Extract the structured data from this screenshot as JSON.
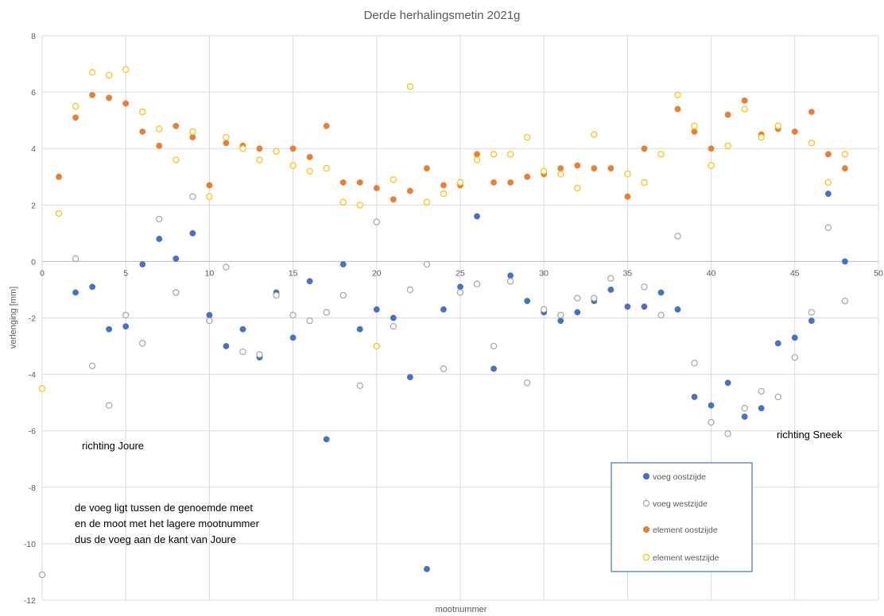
{
  "chart_data": {
    "type": "scatter",
    "title": "Derde herhalingsmetin 2021g",
    "xlabel": "mootnummer",
    "ylabel": "verlenging [mm]",
    "xlim": [
      0,
      50
    ],
    "ylim": [
      -12,
      8
    ],
    "xticks": [
      0,
      5,
      10,
      15,
      20,
      25,
      30,
      35,
      40,
      45,
      50
    ],
    "yticks": [
      -12,
      -10,
      -8,
      -6,
      -4,
      -2,
      0,
      2,
      4,
      6,
      8
    ],
    "grid": true,
    "legend_position": "bottom-right",
    "series": [
      {
        "name": "voeg oostzijde",
        "color": "#4472C4",
        "marker": "filled",
        "x": [
          2,
          3,
          4,
          5,
          6,
          7,
          8,
          9,
          10,
          11,
          12,
          13,
          14,
          15,
          16,
          17,
          18,
          19,
          20,
          21,
          22,
          23,
          24,
          25,
          26,
          27,
          28,
          29,
          30,
          31,
          32,
          33,
          34,
          35,
          36,
          37,
          38,
          39,
          40,
          41,
          42,
          43,
          44,
          45,
          46,
          47,
          48
        ],
        "y": [
          -1.1,
          -0.9,
          -2.4,
          -2.3,
          -0.1,
          0.8,
          0.1,
          1.0,
          -1.9,
          -3.0,
          -2.4,
          -3.4,
          -1.1,
          -2.7,
          -0.7,
          -6.3,
          -0.1,
          -2.4,
          -1.7,
          -2.0,
          -4.1,
          -10.9,
          -1.7,
          -0.9,
          1.6,
          -3.8,
          -0.5,
          -1.4,
          -1.8,
          -2.1,
          -1.8,
          -1.4,
          -1.0,
          -1.6,
          -1.6,
          -1.1,
          -1.7,
          -4.8,
          -5.1,
          -4.3,
          -5.5,
          -5.2,
          -2.9,
          -2.7,
          -2.1,
          2.4,
          0.0
        ]
      },
      {
        "name": "voeg westzijde",
        "color": "#A5A5A5",
        "marker": "hollow",
        "x": [
          0,
          2,
          3,
          4,
          5,
          6,
          7,
          8,
          9,
          10,
          11,
          12,
          13,
          14,
          15,
          16,
          17,
          18,
          19,
          20,
          21,
          22,
          23,
          24,
          25,
          26,
          27,
          28,
          29,
          30,
          31,
          32,
          33,
          34,
          36,
          37,
          38,
          39,
          40,
          41,
          42,
          43,
          44,
          45,
          46,
          47,
          48
        ],
        "y": [
          -11.1,
          0.1,
          -3.7,
          -5.1,
          -1.9,
          -2.9,
          1.5,
          -1.1,
          2.3,
          -2.1,
          -0.2,
          -3.2,
          -3.3,
          -1.2,
          -1.9,
          -2.1,
          -1.8,
          -1.2,
          -4.4,
          1.4,
          -2.3,
          -1.0,
          -0.1,
          -3.8,
          -1.1,
          -0.8,
          -3.0,
          -0.7,
          -4.3,
          -1.7,
          -1.9,
          -1.3,
          -1.3,
          -0.6,
          -0.9,
          -1.9,
          0.9,
          -3.6,
          -5.7,
          -6.1,
          -5.2,
          -4.6,
          -4.8,
          -3.4,
          -1.8,
          1.2,
          -1.4
        ]
      },
      {
        "name": "element oostzijde",
        "color": "#ED7D31",
        "marker": "filled",
        "x": [
          1,
          2,
          3,
          4,
          5,
          6,
          7,
          8,
          9,
          10,
          11,
          12,
          13,
          14,
          15,
          16,
          17,
          18,
          19,
          20,
          21,
          22,
          23,
          24,
          25,
          26,
          27,
          28,
          29,
          30,
          31,
          32,
          33,
          34,
          35,
          36,
          37,
          38,
          39,
          40,
          41,
          42,
          43,
          44,
          45,
          46,
          47,
          48
        ],
        "y": [
          3.0,
          5.1,
          5.9,
          5.8,
          5.6,
          4.6,
          4.1,
          4.8,
          4.4,
          2.7,
          4.2,
          4.1,
          4.0,
          3.9,
          4.0,
          3.7,
          4.8,
          2.8,
          2.8,
          2.6,
          2.2,
          2.5,
          3.3,
          2.7,
          2.7,
          3.8,
          2.8,
          2.8,
          3.0,
          3.1,
          3.3,
          3.4,
          3.3,
          3.3,
          2.3,
          4.0,
          3.8,
          5.4,
          4.6,
          4.0,
          5.2,
          5.7,
          4.5,
          4.7,
          4.6,
          5.3,
          3.8,
          3.3
        ]
      },
      {
        "name": "element westzijde",
        "color": "#FFC000",
        "marker": "hollow",
        "x": [
          0,
          1,
          2,
          3,
          4,
          5,
          6,
          7,
          8,
          9,
          10,
          11,
          12,
          13,
          14,
          15,
          16,
          17,
          18,
          19,
          20,
          21,
          22,
          23,
          24,
          25,
          26,
          27,
          28,
          29,
          30,
          31,
          32,
          33,
          35,
          36,
          37,
          38,
          39,
          40,
          41,
          42,
          43,
          44,
          46,
          47,
          48
        ],
        "y": [
          -4.5,
          1.7,
          5.5,
          6.7,
          6.6,
          6.8,
          5.3,
          4.7,
          3.6,
          4.6,
          2.3,
          4.4,
          4.0,
          3.6,
          3.9,
          3.4,
          3.2,
          3.3,
          2.1,
          2.0,
          -3.0,
          2.9,
          6.2,
          2.1,
          2.4,
          2.8,
          3.6,
          3.8,
          3.8,
          4.4,
          3.2,
          3.1,
          2.6,
          4.5,
          3.1,
          2.8,
          3.8,
          5.9,
          4.8,
          3.4,
          4.1,
          5.4,
          4.4,
          4.8,
          4.2,
          2.8,
          3.8
        ]
      }
    ],
    "annotations": {
      "left_direction": "richting Joure",
      "right_direction": "richting Sneek",
      "note_lines": [
        "de voeg ligt tussen de genoemde meet",
        "en de moot met het lagere mootnummer",
        "dus de voeg aan de kant van Joure"
      ]
    }
  }
}
